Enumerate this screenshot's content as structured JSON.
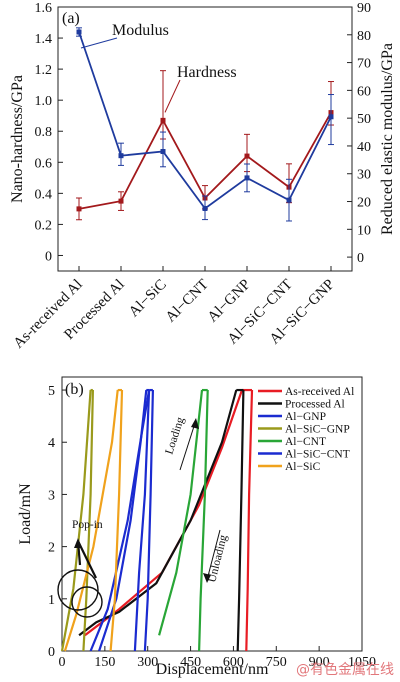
{
  "watermark": "@有色金属在线",
  "chart_data": [
    {
      "panel": "(a)",
      "type": "line",
      "categories": [
        "As-received Al",
        "Processed Al",
        "Al−SiC",
        "Al−CNT",
        "Al−GNP",
        "Al−SiC−CNT",
        "Al−SiC−GNP"
      ],
      "ylabel": "Nano-hardness/GPa",
      "ylim": [
        -0.1,
        1.6
      ],
      "yticks": [
        "0",
        "0.2",
        "0.4",
        "0.6",
        "0.8",
        "1.0",
        "1.2",
        "1.4",
        "1.6"
      ],
      "y2label": "Reduced elastic modulus/GPa",
      "y2lim": [
        -5,
        90
      ],
      "y2ticks": [
        "0",
        "10",
        "20",
        "30",
        "40",
        "50",
        "60",
        "70",
        "80",
        "90"
      ],
      "series": [
        {
          "name": "Hardness",
          "axis": "left",
          "color": "#a3191c",
          "values": [
            0.3,
            0.35,
            0.87,
            0.37,
            0.64,
            0.44,
            0.92
          ],
          "err_low": [
            0.07,
            0.06,
            0.12,
            0.07,
            0.1,
            0.1,
            0.08
          ],
          "err_high": [
            0.07,
            0.06,
            0.32,
            0.08,
            0.14,
            0.15,
            0.2
          ]
        },
        {
          "name": "Modulus",
          "axis": "right",
          "color": "#1f3b9e",
          "values": [
            81,
            36.5,
            38,
            17.5,
            28.5,
            20.5,
            50.5
          ],
          "err_low": [
            1.5,
            3.5,
            5.5,
            4.0,
            5.0,
            7.5,
            10.0
          ],
          "err_high": [
            1.5,
            4.5,
            7.0,
            4.5,
            5.0,
            7.5,
            8.0
          ]
        }
      ]
    },
    {
      "panel": "(b)",
      "type": "line",
      "xlabel": "Displacement/nm",
      "ylabel": "Load/mN",
      "xlim": [
        0,
        1050
      ],
      "ylim": [
        0,
        5.25
      ],
      "xticks": [
        "0",
        "150",
        "300",
        "450",
        "600",
        "750",
        "900",
        "1050"
      ],
      "yticks": [
        "0",
        "1",
        "2",
        "3",
        "4",
        "5"
      ],
      "annotations": {
        "popin": "Pop-in",
        "loading": "Loading",
        "unloading": "Unloading"
      },
      "series": [
        {
          "name": "As-received Al",
          "color": "#e81c24",
          "loading": [
            [
              80,
              0.3
            ],
            [
              200,
              0.8
            ],
            [
              350,
              1.5
            ],
            [
              480,
              2.8
            ],
            [
              560,
              3.9
            ],
            [
              630,
              5.0
            ]
          ],
          "unloading": [
            [
              665,
              5.0
            ],
            [
              655,
              3.0
            ],
            [
              650,
              1.2
            ],
            [
              645,
              0
            ]
          ]
        },
        {
          "name": "Processed Al",
          "color": "#111111",
          "loading": [
            [
              60,
              0.3
            ],
            [
              120,
              0.55
            ],
            [
              200,
              0.75
            ],
            [
              330,
              1.3
            ],
            [
              450,
              2.5
            ],
            [
              560,
              4.0
            ],
            [
              610,
              5.0
            ]
          ],
          "unloading": [
            [
              635,
              5.0
            ],
            [
              628,
              3.0
            ],
            [
              620,
              1.0
            ],
            [
              615,
              0
            ]
          ]
        },
        {
          "name": "Al−GNP",
          "color": "#1b2bd0",
          "loading": [
            [
              130,
              0
            ],
            [
              190,
              1.0
            ],
            [
              240,
              2.5
            ],
            [
              275,
              4.0
            ],
            [
              295,
              5.0
            ]
          ],
          "unloading": [
            [
              305,
              5.0
            ],
            [
              290,
              3.0
            ],
            [
              270,
              1.5
            ],
            [
              255,
              0
            ]
          ]
        },
        {
          "name": "Al−SiC−GNP",
          "color": "#9a9a1c",
          "loading": [
            [
              0,
              0
            ],
            [
              40,
              1.2
            ],
            [
              75,
              3.0
            ],
            [
              100,
              5.0
            ]
          ],
          "unloading": [
            [
              108,
              5.0
            ],
            [
              100,
              3.0
            ],
            [
              85,
              1.0
            ],
            [
              75,
              0
            ]
          ]
        },
        {
          "name": "Al−CNT",
          "color": "#29a637",
          "loading": [
            [
              340,
              0.3
            ],
            [
              400,
              1.5
            ],
            [
              450,
              3.0
            ],
            [
              490,
              5.0
            ]
          ],
          "unloading": [
            [
              510,
              5.0
            ],
            [
              500,
              3.0
            ],
            [
              485,
              1.0
            ],
            [
              480,
              0
            ]
          ]
        },
        {
          "name": "Al−SiC−CNT",
          "color": "#1b2bd0",
          "loading": [
            [
              100,
              0
            ],
            [
              160,
              0.8
            ],
            [
              230,
              2.5
            ],
            [
              280,
              4.2
            ],
            [
              305,
              5.0
            ]
          ],
          "unloading": [
            [
              318,
              5.0
            ],
            [
              310,
              3.0
            ],
            [
              300,
              1.0
            ],
            [
              290,
              0
            ]
          ]
        },
        {
          "name": "Al−SiC",
          "color": "#f0a21c",
          "loading": [
            [
              10,
              0
            ],
            [
              50,
              0.7
            ],
            [
              110,
              2.0
            ],
            [
              175,
              4.0
            ],
            [
              195,
              5.0
            ]
          ],
          "unloading": [
            [
              210,
              5.0
            ],
            [
              200,
              3.0
            ],
            [
              185,
              1.0
            ],
            [
              170,
              0
            ]
          ]
        }
      ]
    }
  ]
}
